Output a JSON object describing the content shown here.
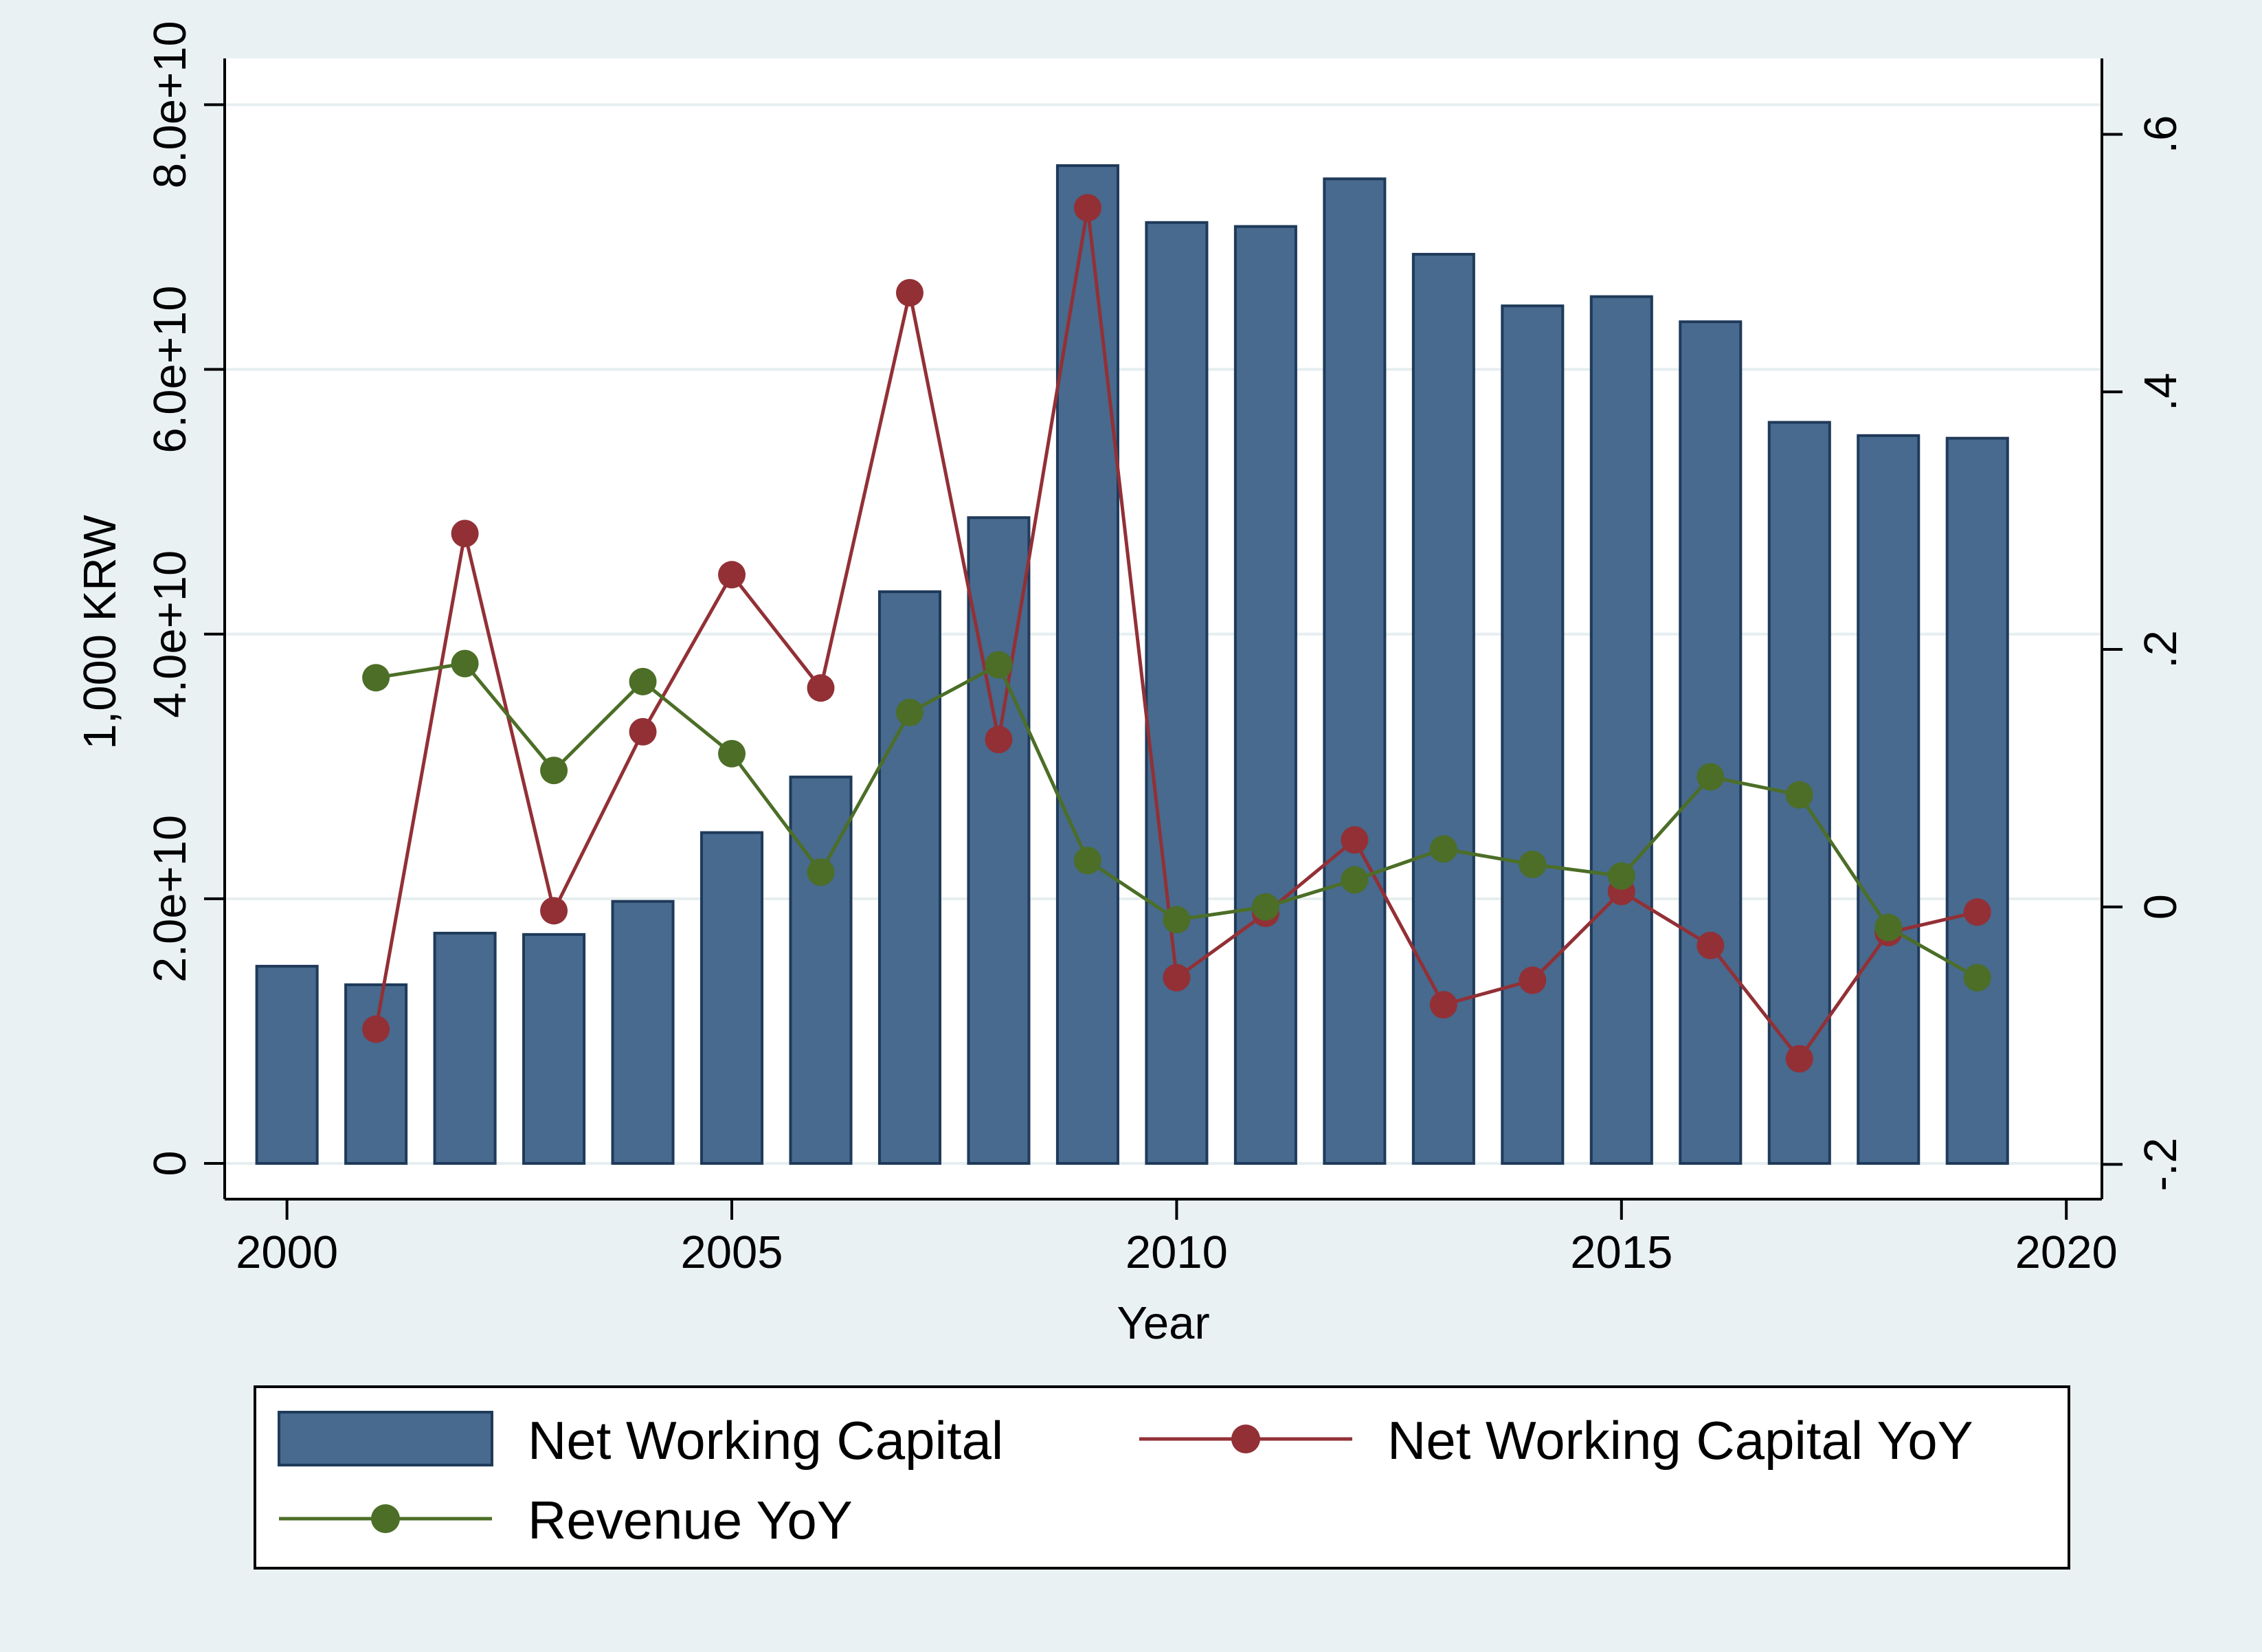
{
  "chart_data": {
    "type": "bar",
    "title": "",
    "xlabel": "Year",
    "ylabel": "1,000 KRW",
    "x_ticks": [
      "2000",
      "2005",
      "2010",
      "2015",
      "2020"
    ],
    "y_left_ticks": [
      "0",
      "2.0e+10",
      "4.0e+10",
      "6.0e+10",
      "8.0e+10"
    ],
    "y_right_ticks": [
      "-.2",
      "0",
      ".2",
      ".4",
      ".6"
    ],
    "xlim": [
      1999.3,
      2020.4
    ],
    "ylim_left": [
      -2700000000,
      83500000000
    ],
    "ylim_right": [
      -0.227,
      0.659
    ],
    "grid": true,
    "legend_position": "bottom",
    "x": [
      2000,
      2001,
      2002,
      2003,
      2004,
      2005,
      2006,
      2007,
      2008,
      2009,
      2010,
      2011,
      2012,
      2013,
      2014,
      2015,
      2016,
      2017,
      2018,
      2019
    ],
    "series": [
      {
        "name": "Net Working Capital",
        "type": "bar",
        "axis": "left",
        "color": "#476a8e",
        "values": [
          14900000000,
          13500000000,
          17400000000,
          17300000000,
          19800000000,
          25000000000,
          29200000000,
          43200000000,
          48800000000,
          75400000000,
          71100000000,
          70800000000,
          74400000000,
          68700000000,
          64800000000,
          65500000000,
          63600000000,
          56000000000,
          55000000000,
          54800000000
        ]
      },
      {
        "name": "Net Working Capital YoY",
        "type": "line",
        "axis": "right",
        "color": "#923036",
        "values": [
          null,
          -0.095,
          0.29,
          -0.003,
          0.136,
          0.258,
          0.17,
          0.477,
          0.13,
          0.543,
          -0.055,
          -0.005,
          0.052,
          -0.076,
          -0.057,
          0.012,
          -0.03,
          -0.118,
          -0.02,
          -0.004
        ]
      },
      {
        "name": "Revenue YoY",
        "type": "line",
        "axis": "right",
        "color": "#4c6e27",
        "values": [
          null,
          0.178,
          0.189,
          0.106,
          0.175,
          0.119,
          0.027,
          0.151,
          0.188,
          0.036,
          -0.01,
          0.0,
          0.021,
          0.045,
          0.033,
          0.024,
          0.101,
          0.087,
          -0.016,
          -0.055
        ]
      }
    ]
  }
}
